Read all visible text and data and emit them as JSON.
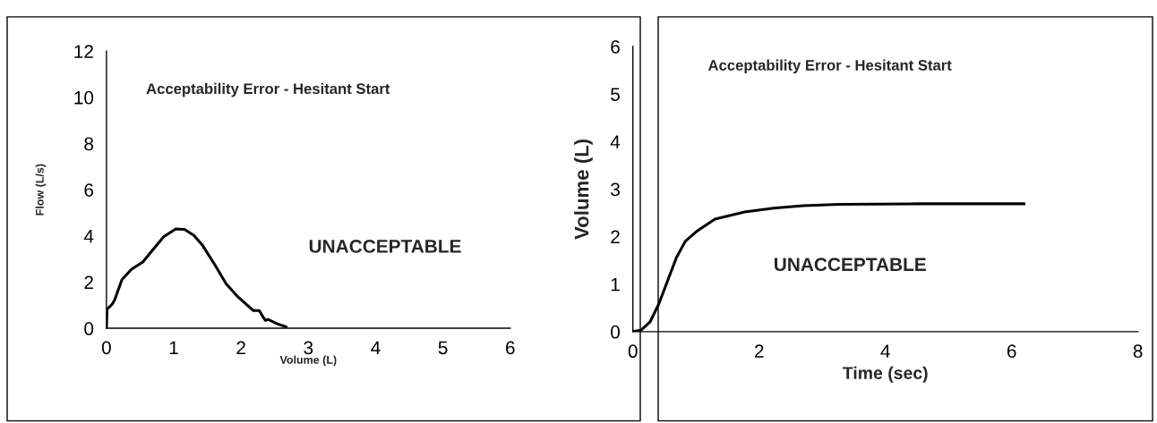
{
  "chart_data": [
    {
      "type": "line",
      "xlabel": "Volume (L)",
      "ylabel": "Flow (L/s)",
      "annotations": [
        "Acceptability Error - Hesitant Start",
        "UNACCEPTABLE"
      ],
      "xlim": [
        0,
        6
      ],
      "xticks": [
        0,
        1,
        2,
        3,
        4,
        5,
        6
      ],
      "ylim": [
        0,
        12
      ],
      "yticks": [
        0,
        2,
        4,
        6,
        8,
        10,
        12
      ],
      "grid": false,
      "legend": false,
      "series": [
        {
          "color": "#000000",
          "x": [
            0,
            0.01,
            0.08,
            0.12,
            0.23,
            0.37,
            0.54,
            0.63,
            0.85,
            1.03,
            1.16,
            1.3,
            1.43,
            1.61,
            1.78,
            1.96,
            2.18,
            2.27,
            2.31,
            2.36,
            2.4,
            2.54,
            2.67
          ],
          "values": [
            0,
            0.83,
            1.02,
            1.21,
            2.1,
            2.55,
            2.87,
            3.19,
            3.96,
            4.3,
            4.28,
            4.02,
            3.58,
            2.75,
            1.92,
            1.34,
            0.77,
            0.77,
            0.57,
            0.34,
            0.38,
            0.19,
            0.06
          ]
        }
      ]
    },
    {
      "type": "line",
      "xlabel": "Time (sec)",
      "ylabel": "Volume (L)",
      "annotations": [
        "Acceptability Error - Hesitant Start",
        "UNACCEPTABLE"
      ],
      "xlim": [
        0,
        8
      ],
      "xticks": [
        0,
        2,
        4,
        6,
        8
      ],
      "ylim": [
        0,
        6
      ],
      "yticks": [
        0,
        1,
        2,
        3,
        4,
        5,
        6
      ],
      "grid": false,
      "legend": false,
      "series": [
        {
          "color": "#000000",
          "x": [
            0,
            0.13,
            0.27,
            0.41,
            0.55,
            0.69,
            0.83,
            1.02,
            1.3,
            1.77,
            2.23,
            2.7,
            3.26,
            4.5,
            6.2
          ],
          "values": [
            0,
            0.03,
            0.2,
            0.58,
            1.07,
            1.56,
            1.9,
            2.12,
            2.37,
            2.52,
            2.6,
            2.65,
            2.68,
            2.69,
            2.69
          ]
        }
      ]
    }
  ]
}
